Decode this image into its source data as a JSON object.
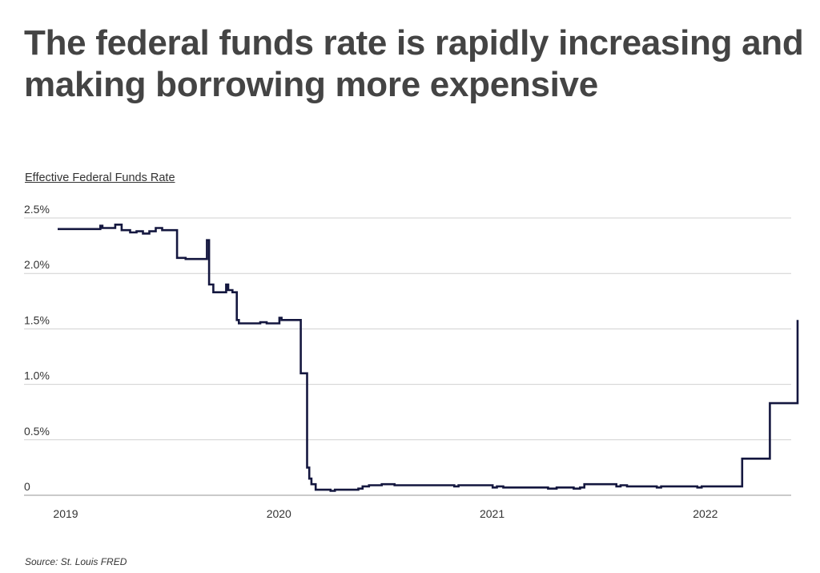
{
  "title": "The federal funds rate is rapidly increasing and making borrowing more expensive",
  "source": "Source:  St. Louis FRED",
  "chart_data": {
    "type": "line",
    "title": "The federal funds rate is rapidly increasing and making borrowing more expensive",
    "subtitle": "Effective Federal Funds Rate",
    "xlabel": "",
    "ylabel": "",
    "x_ticks": [
      {
        "label": "2019",
        "value": 2019.0
      },
      {
        "label": "2020",
        "value": 2020.0
      },
      {
        "label": "2021",
        "value": 2021.0
      },
      {
        "label": "2022",
        "value": 2022.0
      }
    ],
    "y_ticks": [
      {
        "label": "0",
        "value": 0
      },
      {
        "label": "0.5%",
        "value": 0.5
      },
      {
        "label": "1.0%",
        "value": 1.0
      },
      {
        "label": "1.5%",
        "value": 1.5
      },
      {
        "label": "2.0%",
        "value": 2.0
      },
      {
        "label": "2.5%",
        "value": 2.5
      }
    ],
    "xlim": [
      2019.0,
      2022.44
    ],
    "ylim": [
      0,
      2.5
    ],
    "grid": true,
    "line_color": "#14173f",
    "series": [
      {
        "name": "Effective Federal Funds Rate",
        "points": [
          [
            2019.0,
            2.4
          ],
          [
            2019.2,
            2.4
          ],
          [
            2019.2,
            2.43
          ],
          [
            2019.21,
            2.43
          ],
          [
            2019.21,
            2.41
          ],
          [
            2019.27,
            2.41
          ],
          [
            2019.27,
            2.44
          ],
          [
            2019.3,
            2.44
          ],
          [
            2019.3,
            2.39
          ],
          [
            2019.34,
            2.39
          ],
          [
            2019.34,
            2.37
          ],
          [
            2019.37,
            2.37
          ],
          [
            2019.37,
            2.38
          ],
          [
            2019.4,
            2.38
          ],
          [
            2019.4,
            2.36
          ],
          [
            2019.43,
            2.36
          ],
          [
            2019.43,
            2.38
          ],
          [
            2019.46,
            2.38
          ],
          [
            2019.46,
            2.41
          ],
          [
            2019.49,
            2.41
          ],
          [
            2019.49,
            2.39
          ],
          [
            2019.56,
            2.39
          ],
          [
            2019.56,
            2.14
          ],
          [
            2019.6,
            2.14
          ],
          [
            2019.6,
            2.13
          ],
          [
            2019.7,
            2.13
          ],
          [
            2019.7,
            2.3
          ],
          [
            2019.71,
            2.3
          ],
          [
            2019.71,
            1.9
          ],
          [
            2019.73,
            1.9
          ],
          [
            2019.73,
            1.83
          ],
          [
            2019.79,
            1.83
          ],
          [
            2019.79,
            1.9
          ],
          [
            2019.8,
            1.9
          ],
          [
            2019.8,
            1.85
          ],
          [
            2019.82,
            1.85
          ],
          [
            2019.82,
            1.83
          ],
          [
            2019.84,
            1.83
          ],
          [
            2019.84,
            1.58
          ],
          [
            2019.85,
            1.58
          ],
          [
            2019.85,
            1.55
          ],
          [
            2019.95,
            1.55
          ],
          [
            2019.95,
            1.56
          ],
          [
            2019.98,
            1.56
          ],
          [
            2019.98,
            1.55
          ],
          [
            2020.04,
            1.55
          ],
          [
            2020.04,
            1.6
          ],
          [
            2020.05,
            1.6
          ],
          [
            2020.05,
            1.58
          ],
          [
            2020.14,
            1.58
          ],
          [
            2020.14,
            1.1
          ],
          [
            2020.17,
            1.1
          ],
          [
            2020.17,
            0.25
          ],
          [
            2020.18,
            0.25
          ],
          [
            2020.18,
            0.15
          ],
          [
            2020.19,
            0.15
          ],
          [
            2020.19,
            0.1
          ],
          [
            2020.21,
            0.1
          ],
          [
            2020.21,
            0.05
          ],
          [
            2020.28,
            0.05
          ],
          [
            2020.28,
            0.04
          ],
          [
            2020.3,
            0.04
          ],
          [
            2020.3,
            0.05
          ],
          [
            2020.41,
            0.05
          ],
          [
            2020.41,
            0.06
          ],
          [
            2020.43,
            0.06
          ],
          [
            2020.43,
            0.08
          ],
          [
            2020.46,
            0.08
          ],
          [
            2020.46,
            0.09
          ],
          [
            2020.52,
            0.09
          ],
          [
            2020.52,
            0.1
          ],
          [
            2020.58,
            0.1
          ],
          [
            2020.58,
            0.09
          ],
          [
            2020.63,
            0.09
          ],
          [
            2020.63,
            0.09
          ],
          [
            2020.86,
            0.09
          ],
          [
            2020.86,
            0.08
          ],
          [
            2020.88,
            0.08
          ],
          [
            2020.88,
            0.09
          ],
          [
            2021.04,
            0.09
          ],
          [
            2021.04,
            0.07
          ],
          [
            2021.06,
            0.07
          ],
          [
            2021.06,
            0.08
          ],
          [
            2021.09,
            0.08
          ],
          [
            2021.09,
            0.07
          ],
          [
            2021.3,
            0.07
          ],
          [
            2021.3,
            0.06
          ],
          [
            2021.34,
            0.06
          ],
          [
            2021.34,
            0.07
          ],
          [
            2021.42,
            0.07
          ],
          [
            2021.42,
            0.06
          ],
          [
            2021.45,
            0.06
          ],
          [
            2021.45,
            0.07
          ],
          [
            2021.47,
            0.07
          ],
          [
            2021.47,
            0.1
          ],
          [
            2021.62,
            0.1
          ],
          [
            2021.62,
            0.08
          ],
          [
            2021.64,
            0.08
          ],
          [
            2021.64,
            0.09
          ],
          [
            2021.67,
            0.09
          ],
          [
            2021.67,
            0.08
          ],
          [
            2021.81,
            0.08
          ],
          [
            2021.81,
            0.07
          ],
          [
            2021.83,
            0.07
          ],
          [
            2021.83,
            0.08
          ],
          [
            2022.0,
            0.08
          ],
          [
            2022.0,
            0.07
          ],
          [
            2022.02,
            0.07
          ],
          [
            2022.02,
            0.08
          ],
          [
            2022.21,
            0.08
          ],
          [
            2022.21,
            0.33
          ],
          [
            2022.34,
            0.33
          ],
          [
            2022.34,
            0.83
          ],
          [
            2022.47,
            0.83
          ],
          [
            2022.47,
            1.58
          ]
        ]
      }
    ]
  }
}
